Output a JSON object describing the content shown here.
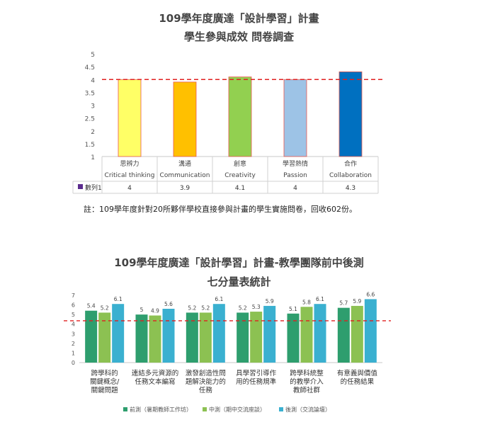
{
  "chart_data": [
    {
      "type": "bar",
      "title": "109學年度廣達「設計學習」計畫",
      "subtitle": "學生參與成效 問卷調查",
      "categories": [
        {
          "zh": "思辨力",
          "en": "Critical thinking"
        },
        {
          "zh": "溝通",
          "en": "Communication"
        },
        {
          "zh": "創意",
          "en": "Creativity"
        },
        {
          "zh": "學習熱情",
          "en": "Passion"
        },
        {
          "zh": "合作",
          "en": "Collaboration"
        }
      ],
      "series": [
        {
          "name": "數列1",
          "values": [
            4,
            3.9,
            4.1,
            4,
            4.3
          ]
        }
      ],
      "value_labels": [
        "4",
        "3.9",
        "4.1",
        "4",
        "4.3"
      ],
      "bar_colors": [
        "#ffff66",
        "#ffc000",
        "#92d050",
        "#9dc3e6",
        "#0070c0"
      ],
      "legend_color": "#5b2c8e",
      "ylim": [
        1,
        5
      ],
      "yticks": [
        "1",
        "1.5",
        "2",
        "2.5",
        "3",
        "3.5",
        "4",
        "4.5",
        "5"
      ],
      "reference_line": 4,
      "reference_color": "#e02020",
      "grid": false,
      "data_table": true
    },
    {
      "type": "bar",
      "title": "109學年度廣達「設計學習」計畫-教學團隊前中後測",
      "subtitle": "七分量表統計",
      "categories": [
        [
          "跨學科的",
          "關鍵概念/",
          "關鍵問題"
        ],
        [
          "連結多元資源的",
          "任務文本編寫"
        ],
        [
          "激發創造性問",
          "題解決能力的",
          "任務"
        ],
        [
          "具學習引導作",
          "用的任務規準"
        ],
        [
          "跨學科統整",
          "的教學介入",
          "教師社群"
        ],
        [
          "有意義與價值",
          "的任務結果"
        ]
      ],
      "series": [
        {
          "name": "前測（暑期教師工作坊）",
          "values": [
            5.4,
            5,
            5.2,
            5.2,
            5.1,
            5.7
          ],
          "labels": [
            "5.4",
            "5",
            "5.2",
            "5.2",
            "5.1",
            "5.7"
          ],
          "color": "#2e9e6e"
        },
        {
          "name": "中測（期中交流座談）",
          "values": [
            5.2,
            4.9,
            5.2,
            5.3,
            5.8,
            5.9
          ],
          "labels": [
            "5.2",
            "4.9",
            "5.2",
            "5.3",
            "5.8",
            "5.9"
          ],
          "color": "#8cc152"
        },
        {
          "name": "後測（交流論壇）",
          "values": [
            6.1,
            5.6,
            6.1,
            5.9,
            6.1,
            6.6
          ],
          "labels": [
            "6.1",
            "5.6",
            "6.1",
            "5.9",
            "6.1",
            "6.6"
          ],
          "color": "#3ab0d0"
        }
      ],
      "ylim": [
        0,
        7
      ],
      "yticks": [
        "0",
        "1",
        "2",
        "3",
        "4",
        "5",
        "6",
        "7"
      ],
      "reference_line": 4.35,
      "reference_color": "#e02020",
      "grid": false,
      "legend": "bottom"
    }
  ],
  "note": "註：109學年度針對20所夥伴學校直接參與計畫的學生實施問卷，回收602份。"
}
